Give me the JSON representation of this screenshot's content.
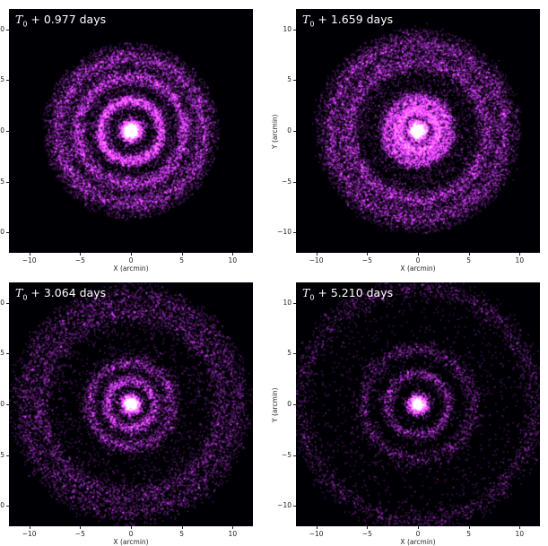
{
  "chart_data": [
    {
      "type": "heatmap",
      "title_prefix": "T",
      "title_sub": "0",
      "title": " + 0.977 days",
      "xlabel": "X (arcmin)",
      "ylabel": "",
      "xlim": [
        -12,
        12
      ],
      "ylim": [
        -12,
        12
      ],
      "xticks": [
        -10,
        -5,
        0,
        5,
        10
      ],
      "yticks": [
        -10,
        -5,
        0,
        5,
        10
      ],
      "colormap": "magma",
      "ring_radii_arcmin": [
        3.0,
        5.3,
        7.2
      ],
      "show_ylabel": false,
      "show_xlabel": true
    },
    {
      "type": "heatmap",
      "title_prefix": "T",
      "title_sub": "0",
      "title": " + 1.659 days",
      "xlabel": "X (arcmin)",
      "ylabel": "Y (arcmin)",
      "xlim": [
        -12,
        12
      ],
      "ylim": [
        -12,
        12
      ],
      "xticks": [
        -10,
        -5,
        0,
        5,
        10
      ],
      "yticks": [
        -10,
        -5,
        0,
        5,
        10
      ],
      "colormap": "magma",
      "ring_radii_arcmin": [
        2.0,
        3.1,
        6.8,
        8.6
      ],
      "show_ylabel": true,
      "show_xlabel": true
    },
    {
      "type": "heatmap",
      "title_prefix": "T",
      "title_sub": "0",
      "title": " + 3.064 days",
      "xlabel": "X (arcmin)",
      "ylabel": "",
      "xlim": [
        -12,
        12
      ],
      "ylim": [
        -12,
        12
      ],
      "xticks": [
        -10,
        -5,
        0,
        5,
        10
      ],
      "yticks": [
        -10,
        -5,
        0,
        5,
        10
      ],
      "colormap": "magma",
      "ring_radii_arcmin": [
        2.4,
        4.1,
        8.9,
        10.5
      ],
      "show_ylabel": false,
      "show_xlabel": true
    },
    {
      "type": "heatmap",
      "title_prefix": "T",
      "title_sub": "0",
      "title": " + 5.210 days",
      "xlabel": "X (arcmin)",
      "ylabel": "Y (arcmin)",
      "xlim": [
        -12,
        12
      ],
      "ylim": [
        -12,
        12
      ],
      "xticks": [
        -10,
        -5,
        0,
        5,
        10
      ],
      "yticks": [
        -10,
        -5,
        0,
        5,
        10
      ],
      "colormap": "magma",
      "ring_radii_arcmin": [
        3.0,
        5.4,
        11.5
      ],
      "show_ylabel": true,
      "show_xlabel": true
    }
  ]
}
